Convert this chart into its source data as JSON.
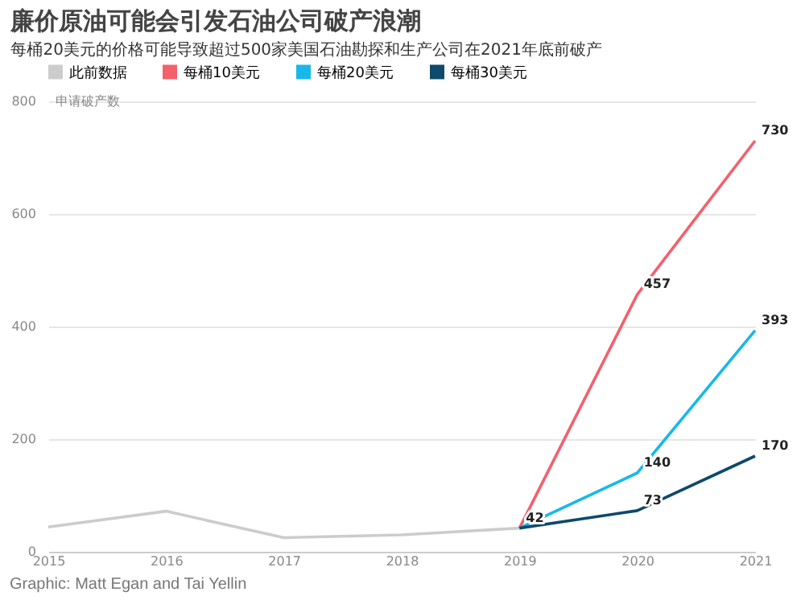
{
  "chart_data": {
    "type": "line",
    "title": "廉价原油可能会引发石油公司破产浪潮",
    "subtitle": "每桶20美元的价格可能导致超过500家美国石油勘探和生产公司在2021年底前破产",
    "ylabel": "申请破产数",
    "categories": [
      "2015",
      "2016",
      "2017",
      "2018",
      "2019",
      "2020",
      "2021"
    ],
    "series": [
      {
        "name": "此前数据",
        "color": "#cccccc",
        "values": [
          44,
          72,
          25,
          30,
          42,
          null,
          null
        ],
        "value_labels": [
          null,
          null,
          null,
          null,
          "42",
          null,
          null
        ]
      },
      {
        "name": "每桶10美元",
        "color": "#f4606c",
        "values": [
          null,
          null,
          null,
          null,
          42,
          457,
          730
        ],
        "value_labels": [
          null,
          null,
          null,
          null,
          null,
          "457",
          "730"
        ]
      },
      {
        "name": "每桶20美元",
        "color": "#19b8ea",
        "values": [
          null,
          null,
          null,
          null,
          42,
          140,
          393
        ],
        "value_labels": [
          null,
          null,
          null,
          null,
          null,
          "140",
          "393"
        ]
      },
      {
        "name": "每桶30美元",
        "color": "#0d4a6b",
        "values": [
          null,
          null,
          null,
          null,
          42,
          73,
          170
        ],
        "value_labels": [
          null,
          null,
          null,
          null,
          null,
          "73",
          "170"
        ]
      }
    ],
    "ylim": [
      0,
      800
    ],
    "yticks": [
      0,
      200,
      400,
      600,
      800
    ],
    "grid": "y",
    "legend": "top left",
    "marker": "none",
    "annotations": [
      "Graphic: Matt Egan and Tai Yellin"
    ]
  }
}
